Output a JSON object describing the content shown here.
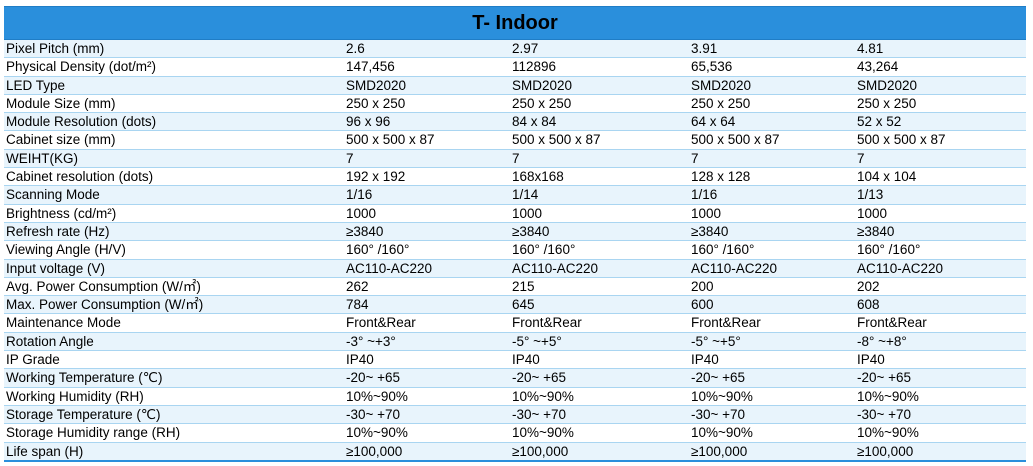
{
  "table": {
    "title": "T- Indoor",
    "rows": [
      {
        "param": "Pixel Pitch (mm)",
        "values": [
          "2.6",
          "2.97",
          "3.91",
          "4.81"
        ]
      },
      {
        "param": "Physical Density (dot/m²)",
        "values": [
          "147,456",
          "112896",
          "65,536",
          "43,264"
        ]
      },
      {
        "param": "LED Type",
        "values": [
          "SMD2020",
          "SMD2020",
          "SMD2020",
          "SMD2020"
        ]
      },
      {
        "param": "Module Size (mm)",
        "values": [
          "250 x 250",
          "250 x 250",
          "250 x 250",
          "250 x 250"
        ]
      },
      {
        "param": "Module Resolution (dots)",
        "values": [
          "96 x 96",
          "84 x 84",
          "64 x 64",
          "52 x 52"
        ]
      },
      {
        "param": "Cabinet size (mm)",
        "values": [
          "500  x 500 x 87",
          "500  x 500 x 87",
          "500  x 500 x 87",
          "500  x 500 x 87"
        ]
      },
      {
        "param": "WEIHT(KG)",
        "values": [
          "7",
          "7",
          "7",
          "7"
        ]
      },
      {
        "param": "Cabinet resolution (dots)",
        "values": [
          "192 x 192",
          "168x168",
          "128 x 128",
          "104 x 104"
        ]
      },
      {
        "param": "Scanning Mode",
        "values": [
          "1/16",
          "1/14",
          "1/16",
          "1/13"
        ]
      },
      {
        "param": "Brightness (cd/m²)",
        "values": [
          "1000",
          "1000",
          "1000",
          "1000"
        ]
      },
      {
        "param": "Refresh  rate (Hz)",
        "values": [
          "≥3840",
          "≥3840",
          "≥3840",
          "≥3840"
        ]
      },
      {
        "param": "Viewing Angle (H/V)",
        "values": [
          "160°  /160°",
          "160°  /160°",
          "160°  /160°",
          "160°  /160°"
        ]
      },
      {
        "param": "Input voltage (V)",
        "values": [
          "AC110-AC220",
          "AC110-AC220",
          "AC110-AC220",
          "AC110-AC220"
        ]
      },
      {
        "param": "Avg. Power Consumption (W/㎡)",
        "values": [
          "262",
          "215",
          "200",
          "202"
        ]
      },
      {
        "param": "Max. Power Consumption (W/㎡)",
        "values": [
          "784",
          "645",
          "600",
          "608"
        ]
      },
      {
        "param": "Maintenance  Mode",
        "values": [
          "Front&Rear",
          "Front&Rear",
          "Front&Rear",
          "Front&Rear"
        ]
      },
      {
        "param": "Rotation Angle",
        "values": [
          "-3°  ~+3°",
          "-5°  ~+5°",
          "-5°  ~+5°",
          "-8°  ~+8°"
        ]
      },
      {
        "param": "IP Grade",
        "values": [
          "IP40",
          "IP40",
          "IP40",
          "IP40"
        ]
      },
      {
        "param": "Working Temperature (℃)",
        "values": [
          "-20~ +65",
          "-20~ +65",
          "-20~ +65",
          "-20~ +65"
        ]
      },
      {
        "param": "Working  Humidity (RH)",
        "values": [
          "10%~90%",
          "10%~90%",
          "10%~90%",
          "10%~90%"
        ]
      },
      {
        "param": "Storage  Temperature (℃)",
        "values": [
          "-30~ +70",
          "-30~ +70",
          "-30~ +70",
          "-30~ +70"
        ]
      },
      {
        "param": "Storage Humidity range (RH)",
        "values": [
          "10%~90%",
          "10%~90%",
          "10%~90%",
          "10%~90%"
        ]
      },
      {
        "param": "Life span (H)",
        "values": [
          "≥100,000",
          "≥100,000",
          "≥100,000",
          "≥100,000"
        ]
      }
    ]
  }
}
